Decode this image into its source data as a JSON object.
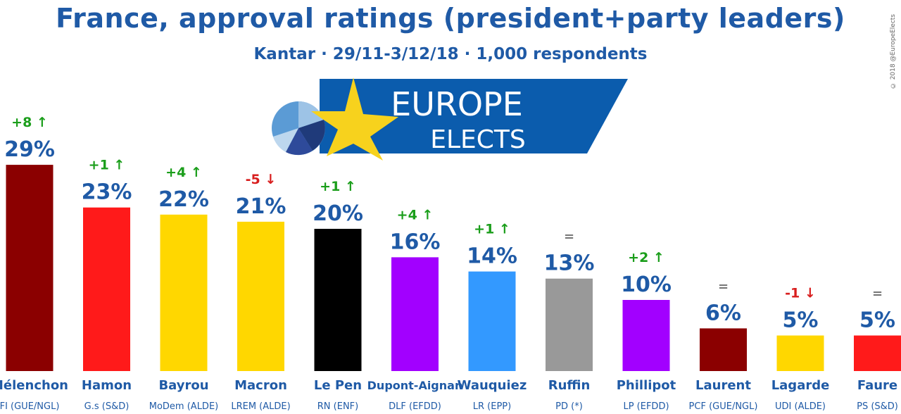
{
  "header": {
    "title": "France, approval ratings (president+party leaders)",
    "subtitle": "Kantar · 29/11-3/12/18 · 1,000 respondents",
    "copyright": "© 2018 @EuropeElects"
  },
  "logo": {
    "line1": "EUROPE",
    "line2": "ELECTS",
    "colors": {
      "banner": "#0b5cad",
      "star": "#f7d21d"
    }
  },
  "chart_data": {
    "type": "bar",
    "ylim": [
      0,
      30
    ],
    "categories": [
      "Mélenchon",
      "Hamon",
      "Bayrou",
      "Macron",
      "Le Pen",
      "Dupont-Aignan",
      "Wauquiez",
      "Ruffin",
      "Phillipot",
      "Laurent",
      "Lagarde",
      "Faure"
    ],
    "parties": [
      "FI (GUE/NGL)",
      "G.s (S&D)",
      "MoDem (ALDE)",
      "LREM (ALDE)",
      "RN (ENF)",
      "DLF (EFDD)",
      "LR (EPP)",
      "PD (*)",
      "LP (EFDD)",
      "PCF (GUE/NGL)",
      "UDI (ALDE)",
      "PS (S&D)"
    ],
    "values": [
      29,
      23,
      22,
      21,
      20,
      16,
      14,
      13,
      10,
      6,
      5,
      5
    ],
    "value_labels": [
      "29%",
      "23%",
      "22%",
      "21%",
      "20%",
      "16%",
      "14%",
      "13%",
      "10%",
      "6%",
      "5%",
      "5%"
    ],
    "changes": [
      "+8 ↑",
      "+1 ↑",
      "+4 ↑",
      "-5 ↓",
      "+1 ↑",
      "+4 ↑",
      "+1 ↑",
      "=",
      "+2 ↑",
      "=",
      "-1 ↓",
      "="
    ],
    "change_direction": [
      "up",
      "up",
      "up",
      "down",
      "up",
      "up",
      "up",
      "eq",
      "up",
      "eq",
      "down",
      "eq"
    ],
    "colors": [
      "#8b0000",
      "#ff1a1a",
      "#ffd700",
      "#ffd700",
      "#000000",
      "#a200ff",
      "#3399ff",
      "#999999",
      "#a200ff",
      "#8b0000",
      "#ffd700",
      "#ff1a1a"
    ],
    "label_color": "#1f5aa6"
  }
}
